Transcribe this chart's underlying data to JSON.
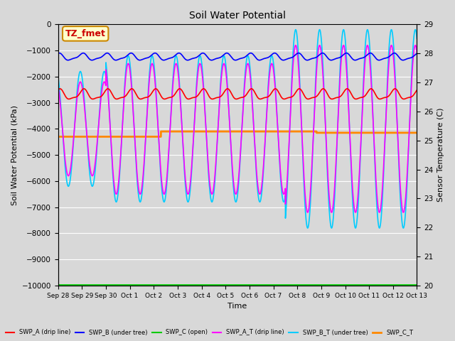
{
  "title": "Soil Water Potential",
  "xlabel": "Time",
  "ylabel_left": "Soil Water Potential (kPa)",
  "ylabel_right": "Sensor Temperature (C)",
  "ylim_left": [
    -10000,
    0
  ],
  "ylim_right": [
    20.0,
    29.0
  ],
  "yticks_left": [
    -10000,
    -9000,
    -8000,
    -7000,
    -6000,
    -5000,
    -4000,
    -3000,
    -2000,
    -1000,
    0
  ],
  "yticks_right": [
    20.0,
    21.0,
    22.0,
    23.0,
    24.0,
    25.0,
    26.0,
    27.0,
    28.0,
    29.0
  ],
  "xtick_labels": [
    "Sep 28",
    "Sep 29",
    "Sep 30",
    "Oct 1",
    "Oct 2",
    "Oct 3",
    "Oct 4",
    "Oct 5",
    "Oct 6",
    "Oct 7",
    "Oct 8",
    "Oct 9",
    "Oct 10",
    "Oct 11",
    "Oct 12",
    "Oct 13"
  ],
  "fig_facecolor": "#d8d8d8",
  "plot_bg_color": "#d8d8d8",
  "grid_color": "#ffffff",
  "annotation_text": "TZ_fmet",
  "annotation_color": "#cc0000",
  "annotation_bg": "#ffffcc",
  "annotation_border": "#cc8800",
  "swp_b_color": "#0000ff",
  "swp_a_color": "#ff0000",
  "swp_c_color": "#00cc00",
  "swp_at_color": "#ff00ff",
  "swp_bt_color": "#00ccff",
  "swp_ct_color": "#ff8800"
}
